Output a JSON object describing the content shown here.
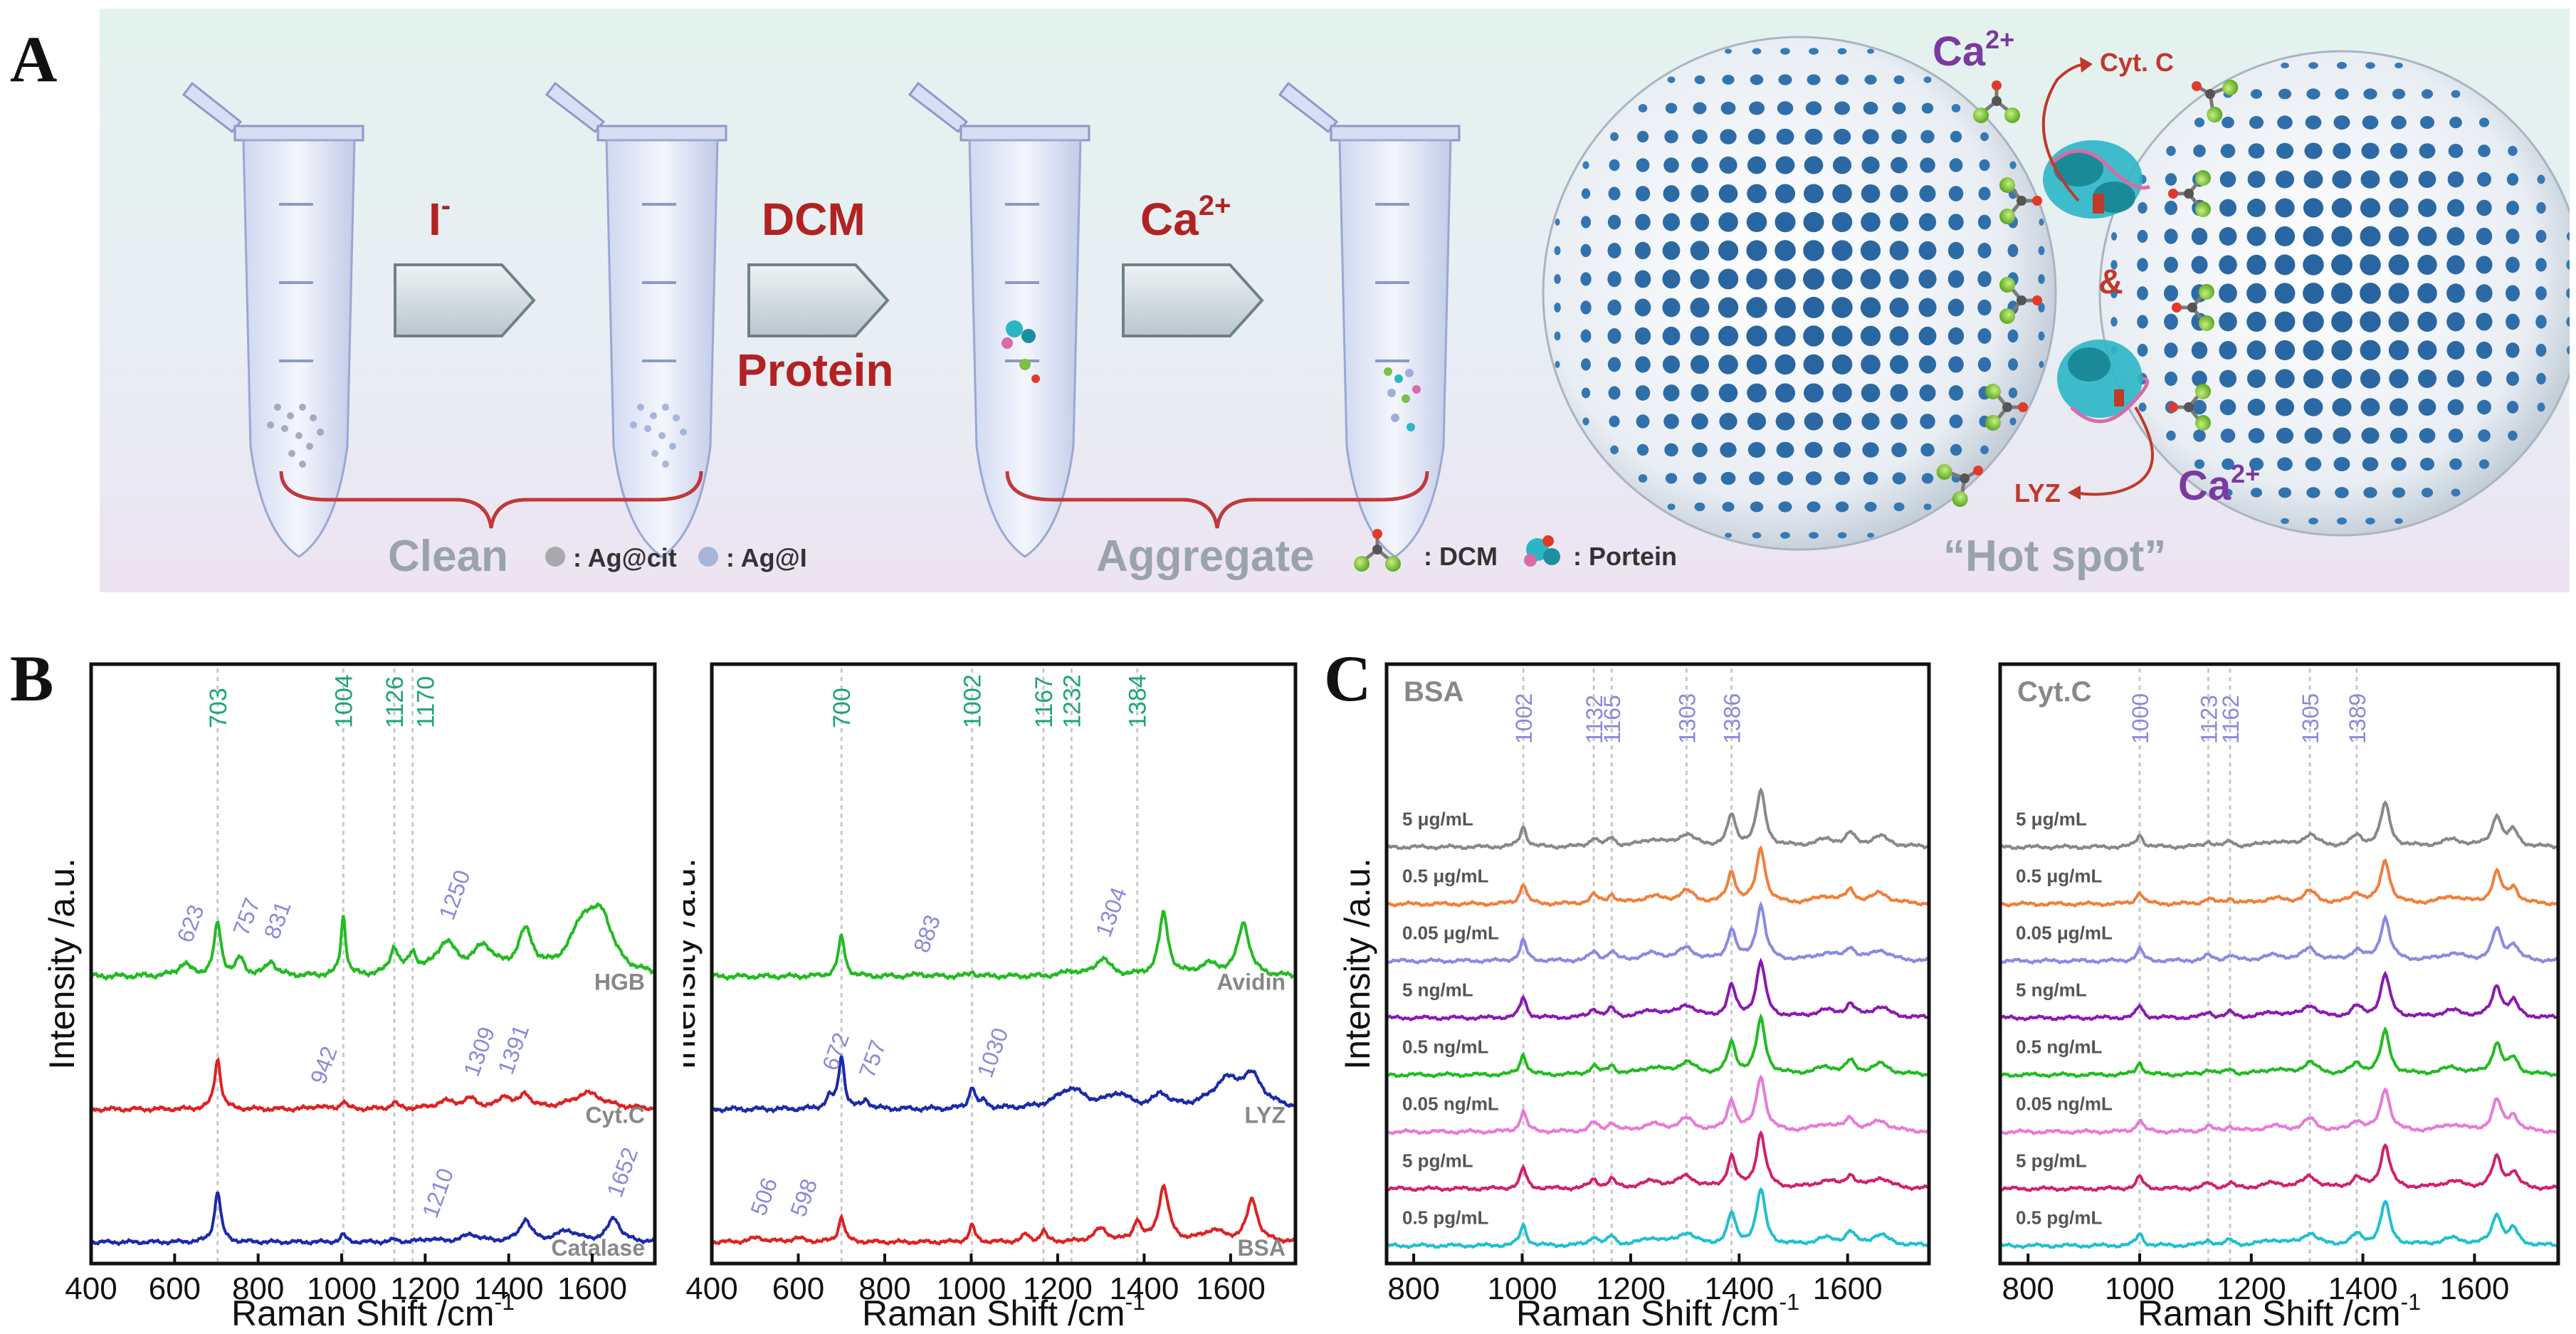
{
  "panel_labels": {
    "a": "A",
    "b": "B",
    "c": "C"
  },
  "schematic": {
    "steps": [
      "I",
      "DCM",
      "Protein",
      "Ca"
    ],
    "ion_superscript": "-",
    "ca_superscript": "2+",
    "clean_label": "Clean",
    "aggregate_label": "Aggregate",
    "legend_agcit": ": Ag@cit",
    "legend_agi": ": Ag@I",
    "legend_dcm": ": DCM",
    "legend_protein": ": Portein",
    "hotspot_label": "“Hot spot”",
    "cytc_label": "Cyt. C",
    "lyz_label": "LYZ",
    "and_label": "&",
    "ca_left": "Ca",
    "ca_right": "Ca"
  },
  "chart_data": [
    {
      "type": "line",
      "id": "B1",
      "xlabel": "Raman Shift /cm",
      "xlabel_sup": "-1",
      "ylabel": "Intensity /a.u.",
      "xlim": [
        400,
        1750
      ],
      "xticks": [
        400,
        600,
        800,
        1000,
        1200,
        1400,
        1600
      ],
      "vlines": [
        703,
        1004,
        1126,
        1170
      ],
      "green_labels": [
        {
          "text": "703",
          "x": 703
        },
        {
          "text": "1004",
          "x": 1004
        },
        {
          "text": "1126",
          "x": 1126
        },
        {
          "text": "1170",
          "x": 1200
        }
      ],
      "series": [
        {
          "name": "HGB",
          "color": "#22bb22",
          "offset": 2.0,
          "peaks": [
            [
              623,
              0.25,
              18
            ],
            [
              703,
              1.1,
              10
            ],
            [
              757,
              0.35,
              12
            ],
            [
              831,
              0.3,
              14
            ],
            [
              1004,
              1.25,
              7
            ],
            [
              1126,
              0.55,
              12
            ],
            [
              1170,
              0.4,
              12
            ],
            [
              1250,
              0.65,
              30
            ],
            [
              1340,
              0.55,
              30
            ],
            [
              1440,
              0.85,
              22
            ],
            [
              1580,
              1.05,
              40
            ],
            [
              1625,
              0.95,
              30
            ]
          ],
          "labels": [
            {
              "text": "623",
              "x": 623
            },
            {
              "text": "757",
              "x": 757
            },
            {
              "text": "831",
              "x": 831
            },
            {
              "text": "1250",
              "x": 1250
            }
          ]
        },
        {
          "name": "Cyt.C",
          "color": "#dd2222",
          "offset": 1.0,
          "peaks": [
            [
              703,
              1.25,
              9
            ],
            [
              942,
              0.08,
              15
            ],
            [
              1004,
              0.2,
              8
            ],
            [
              1126,
              0.15,
              10
            ],
            [
              1250,
              0.18,
              30
            ],
            [
              1309,
              0.22,
              20
            ],
            [
              1391,
              0.3,
              16
            ],
            [
              1440,
              0.35,
              15
            ],
            [
              1590,
              0.4,
              45
            ]
          ],
          "labels": [
            {
              "text": "942",
              "x": 942
            },
            {
              "text": "1309",
              "x": 1309
            },
            {
              "text": "1391",
              "x": 1391
            }
          ]
        },
        {
          "name": "Catalase",
          "color": "#1a2aaa",
          "offset": 0.0,
          "peaks": [
            [
              703,
              1.4,
              9
            ],
            [
              1004,
              0.2,
              8
            ],
            [
              1126,
              0.06,
              10
            ],
            [
              1210,
              0.08,
              20
            ],
            [
              1310,
              0.2,
              25
            ],
            [
              1440,
              0.6,
              16
            ],
            [
              1540,
              0.3,
              30
            ],
            [
              1652,
              0.65,
              18
            ]
          ],
          "labels": [
            {
              "text": "1210",
              "x": 1210
            },
            {
              "text": "1652",
              "x": 1652
            }
          ]
        }
      ]
    },
    {
      "type": "line",
      "id": "B2",
      "xlabel": "Raman Shift /cm",
      "xlabel_sup": "-1",
      "ylabel": "Intensity /a.u.",
      "xlim": [
        400,
        1750
      ],
      "xticks": [
        400,
        600,
        800,
        1000,
        1200,
        1400,
        1600
      ],
      "vlines": [
        700,
        1002,
        1167,
        1232,
        1384
      ],
      "green_labels": [
        {
          "text": "700",
          "x": 700
        },
        {
          "text": "1002",
          "x": 1002
        },
        {
          "text": "1167",
          "x": 1167
        },
        {
          "text": "1232",
          "x": 1232
        },
        {
          "text": "1384",
          "x": 1384
        }
      ],
      "series": [
        {
          "name": "Avidin",
          "color": "#22bb22",
          "offset": 2.0,
          "peaks": [
            [
              700,
              0.9,
              9
            ],
            [
              883,
              0.05,
              15
            ],
            [
              1002,
              0.1,
              8
            ],
            [
              1230,
              0.1,
              20
            ],
            [
              1304,
              0.4,
              20
            ],
            [
              1445,
              1.4,
              13
            ],
            [
              1550,
              0.25,
              30
            ],
            [
              1630,
              1.2,
              16
            ]
          ],
          "labels": [
            {
              "text": "883",
              "x": 883
            },
            {
              "text": "1304",
              "x": 1304
            }
          ]
        },
        {
          "name": "LYZ",
          "color": "#1a2aaa",
          "offset": 1.0,
          "peaks": [
            [
              672,
              0.25,
              10
            ],
            [
              700,
              1.2,
              8
            ],
            [
              757,
              0.2,
              10
            ],
            [
              1002,
              0.5,
              8
            ],
            [
              1030,
              0.15,
              10
            ],
            [
              1230,
              0.45,
              40
            ],
            [
              1340,
              0.3,
              30
            ],
            [
              1440,
              0.3,
              20
            ],
            [
              1590,
              0.6,
              40
            ],
            [
              1650,
              0.65,
              30
            ]
          ],
          "labels": [
            {
              "text": "672",
              "x": 672
            },
            {
              "text": "757",
              "x": 757
            },
            {
              "text": "1030",
              "x": 1030
            }
          ]
        },
        {
          "name": "BSA",
          "color": "#dd2222",
          "offset": 0.0,
          "peaks": [
            [
              506,
              0.12,
              20
            ],
            [
              598,
              0.1,
              20
            ],
            [
              700,
              0.7,
              8
            ],
            [
              1002,
              0.45,
              8
            ],
            [
              1126,
              0.2,
              10
            ],
            [
              1167,
              0.3,
              8
            ],
            [
              1300,
              0.35,
              20
            ],
            [
              1384,
              0.55,
              10
            ],
            [
              1445,
              1.5,
              14
            ],
            [
              1560,
              0.3,
              30
            ],
            [
              1650,
              1.15,
              15
            ]
          ],
          "labels": [
            {
              "text": "506",
              "x": 506
            },
            {
              "text": "598",
              "x": 598
            }
          ]
        }
      ]
    },
    {
      "type": "line",
      "id": "C1",
      "title": "BSA",
      "xlabel": "Raman Shift /cm",
      "xlabel_sup": "-1",
      "ylabel": "Intensity /a.u.",
      "xlim": [
        750,
        1750
      ],
      "xticks": [
        800,
        1000,
        1200,
        1400,
        1600
      ],
      "vlines": [
        1002,
        1132,
        1165,
        1303,
        1386
      ],
      "top_labels": [
        "1002",
        "1132",
        "1165",
        "1303",
        "1386"
      ],
      "conc_labels": [
        "5 μg/mL",
        "0.5 μg/mL",
        "0.05 μg/mL",
        "5 ng/mL",
        "0.5 ng/mL",
        "0.05 ng/mL",
        "5 pg/mL",
        "0.5 pg/mL"
      ],
      "colors": [
        "#888888",
        "#f07f3a",
        "#8a8ae0",
        "#8a1ab0",
        "#22bb22",
        "#e87ad8",
        "#d0216e",
        "#1fc0d0"
      ],
      "peaks": [
        [
          1002,
          0.6,
          7
        ],
        [
          1132,
          0.25,
          9
        ],
        [
          1165,
          0.25,
          8
        ],
        [
          1240,
          0.2,
          25
        ],
        [
          1303,
          0.35,
          18
        ],
        [
          1386,
          0.9,
          9
        ],
        [
          1440,
          1.6,
          10
        ],
        [
          1560,
          0.2,
          25
        ],
        [
          1605,
          0.35,
          10
        ],
        [
          1660,
          0.3,
          20
        ]
      ]
    },
    {
      "type": "line",
      "id": "C2",
      "title": "Cyt.C",
      "xlabel": "Raman Shift /cm",
      "xlabel_sup": "-1",
      "ylabel": "",
      "xlim": [
        750,
        1750
      ],
      "xticks": [
        800,
        1000,
        1200,
        1400,
        1600
      ],
      "vlines": [
        1000,
        1123,
        1162,
        1305,
        1389
      ],
      "top_labels": [
        "1000",
        "1123",
        "1162",
        "1305",
        "1389"
      ],
      "conc_labels": [
        "5 μg/mL",
        "0.5 μg/mL",
        "0.05 μg/mL",
        "5 ng/mL",
        "0.5 ng/mL",
        "0.05 ng/mL",
        "5 pg/mL",
        "0.5 pg/mL"
      ],
      "colors": [
        "#888888",
        "#f07f3a",
        "#8a8ae0",
        "#8a1ab0",
        "#22bb22",
        "#e87ad8",
        "#d0216e",
        "#1fc0d0"
      ],
      "peaks": [
        [
          1000,
          0.35,
          7
        ],
        [
          1123,
          0.15,
          9
        ],
        [
          1162,
          0.15,
          8
        ],
        [
          1240,
          0.15,
          25
        ],
        [
          1305,
          0.35,
          15
        ],
        [
          1389,
          0.3,
          12
        ],
        [
          1440,
          1.25,
          10
        ],
        [
          1560,
          0.2,
          25
        ],
        [
          1640,
          0.9,
          10
        ],
        [
          1670,
          0.45,
          10
        ]
      ]
    }
  ]
}
